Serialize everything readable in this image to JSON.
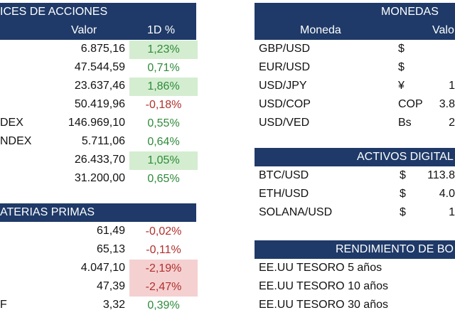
{
  "stocks": {
    "title": "ICES DE ACCIONES",
    "col_value": "Valor",
    "col_change": "1D %",
    "rows": [
      {
        "name": "",
        "value": "6.875,16",
        "change": "1,23%",
        "dir": "pos",
        "hl": true
      },
      {
        "name": "",
        "value": "47.544,59",
        "change": "0,71%",
        "dir": "pos",
        "hl": false
      },
      {
        "name": "",
        "value": "23.637,46",
        "change": "1,86%",
        "dir": "pos",
        "hl": true
      },
      {
        "name": "",
        "value": "50.419,96",
        "change": "-0,18%",
        "dir": "neg",
        "hl": false
      },
      {
        "name": "DEX",
        "value": "146.969,10",
        "change": "0,55%",
        "dir": "pos",
        "hl": false
      },
      {
        "name": "NDEX",
        "value": "5.711,06",
        "change": "0,64%",
        "dir": "pos",
        "hl": false
      },
      {
        "name": "",
        "value": "26.433,70",
        "change": "1,05%",
        "dir": "pos",
        "hl": true
      },
      {
        "name": "",
        "value": "31.200,00",
        "change": "0,65%",
        "dir": "pos",
        "hl": false
      }
    ]
  },
  "commodities": {
    "title": "ATERIAS PRIMAS",
    "rows": [
      {
        "name": "",
        "value": "61,49",
        "change": "-0,02%",
        "dir": "neg",
        "hl": false
      },
      {
        "name": "",
        "value": "65,13",
        "change": "-0,11%",
        "dir": "neg",
        "hl": false
      },
      {
        "name": "",
        "value": "4.047,10",
        "change": "-2,19%",
        "dir": "neg",
        "hl": true
      },
      {
        "name": "",
        "value": "47,39",
        "change": "-2,47%",
        "dir": "neg",
        "hl": true
      },
      {
        "name": "F",
        "value": "3,32",
        "change": "0,39%",
        "dir": "pos",
        "hl": false
      }
    ]
  },
  "currencies": {
    "title": "MONEDAS",
    "col_pair": "Moneda",
    "col_value": "Valo",
    "rows": [
      {
        "pair": "GBP/USD",
        "symbol": "$",
        "value": ""
      },
      {
        "pair": "EUR/USD",
        "symbol": "$",
        "value": ""
      },
      {
        "pair": "USD/JPY",
        "symbol": "¥",
        "value": "1"
      },
      {
        "pair": "USD/COP",
        "symbol": "COP",
        "value": "3.8"
      },
      {
        "pair": "USD/VED",
        "symbol": "Bs",
        "value": "2"
      }
    ]
  },
  "crypto": {
    "title": "ACTIVOS DIGITAL",
    "rows": [
      {
        "pair": "BTC/USD",
        "symbol": "$",
        "value": "113.8"
      },
      {
        "pair": "ETH/USD",
        "symbol": "$",
        "value": "4.0"
      },
      {
        "pair": "SOLANA/USD",
        "symbol": "$",
        "value": "1"
      }
    ]
  },
  "bonds": {
    "title": "RENDIMIENTO DE BO",
    "rows": [
      {
        "name": "EE.UU TESORO 5 años"
      },
      {
        "name": "EE.UU TESORO 10 años"
      },
      {
        "name": "EE.UU TESORO 30 años"
      }
    ]
  },
  "colors": {
    "header_bg": "#1f3a68",
    "positive": "#2e8b3a",
    "negative": "#b0302e",
    "highlight_green": "#d4edd0",
    "highlight_red": "#f5d0d0"
  }
}
